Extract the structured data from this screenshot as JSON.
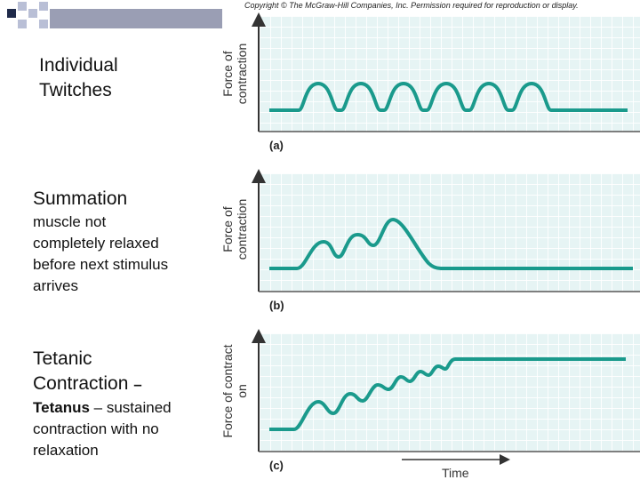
{
  "copyright": "Copyright © The McGraw-Hill Companies, Inc. Permission required for reproduction or display.",
  "sections": {
    "individual": {
      "title_line1": "Individual",
      "title_line2": "Twitches"
    },
    "summation": {
      "title": "Summation",
      "desc_line1": "muscle not",
      "desc_line2": "completely relaxed",
      "desc_line3": "before next stimulus",
      "desc_line4": "arrives"
    },
    "tetanic": {
      "title_line1": "Tetanic",
      "title_line2": "Contraction",
      "dash": "–",
      "desc_bold": "Tetanus",
      "desc_rest": "– sustained",
      "desc_line2": "contraction with no",
      "desc_line3": "relaxation"
    }
  },
  "y_axis_label_a": "Force of contraction",
  "y_axis_label_b": "Force of contraction",
  "y_axis_label_c": "Force of contract on",
  "panel_labels": {
    "a": "(a)",
    "b": "(b)",
    "c": "(c)"
  },
  "x_axis_label": "Time",
  "colors": {
    "trace": "#1a9a8c",
    "axis": "#333333",
    "grid_bg": "#e6f4f4",
    "deco_dark": "#1f2a4a",
    "deco_light": "#b9bfd6"
  }
}
